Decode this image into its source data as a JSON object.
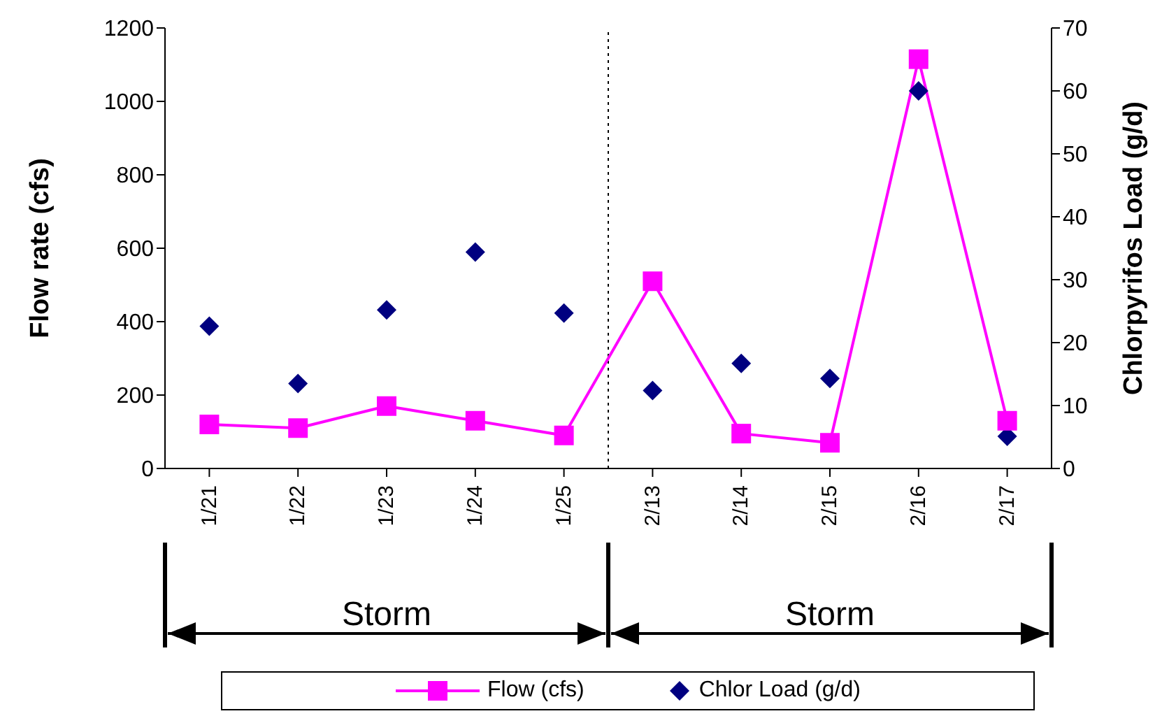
{
  "chart_data": {
    "type": "line",
    "ylabel": "Flow rate (cfs)",
    "y2label": "Chlorpyrifos Load (g/d)",
    "categories": [
      "1/21",
      "1/22",
      "1/23",
      "1/24",
      "1/25",
      "2/13",
      "2/14",
      "2/15",
      "2/16",
      "2/17"
    ],
    "series": [
      {
        "name": "Flow (cfs)",
        "color": "#ff00ff",
        "marker": "square",
        "line_style": "solid",
        "values": [
          120,
          110,
          170,
          130,
          90,
          510,
          95,
          70,
          1115,
          130
        ]
      },
      {
        "name": "Chlor Load (g/d)",
        "type": "scatter",
        "axis": "y2",
        "color": "#000080",
        "marker": "diamond",
        "values": [
          22.6,
          13.5,
          25.2,
          34.4,
          24.7,
          12.4,
          16.7,
          14.3,
          60,
          5.1
        ]
      }
    ],
    "ylim": [
      0,
      1200
    ],
    "yticks": [
      0,
      200,
      400,
      600,
      800,
      1000,
      1200
    ],
    "y2lim": [
      0,
      70
    ],
    "y2ticks": [
      0,
      10,
      20,
      30,
      40,
      50,
      60,
      70
    ],
    "annotations": [
      "Storm",
      "Storm"
    ],
    "grid": false,
    "legend": "bottom"
  }
}
